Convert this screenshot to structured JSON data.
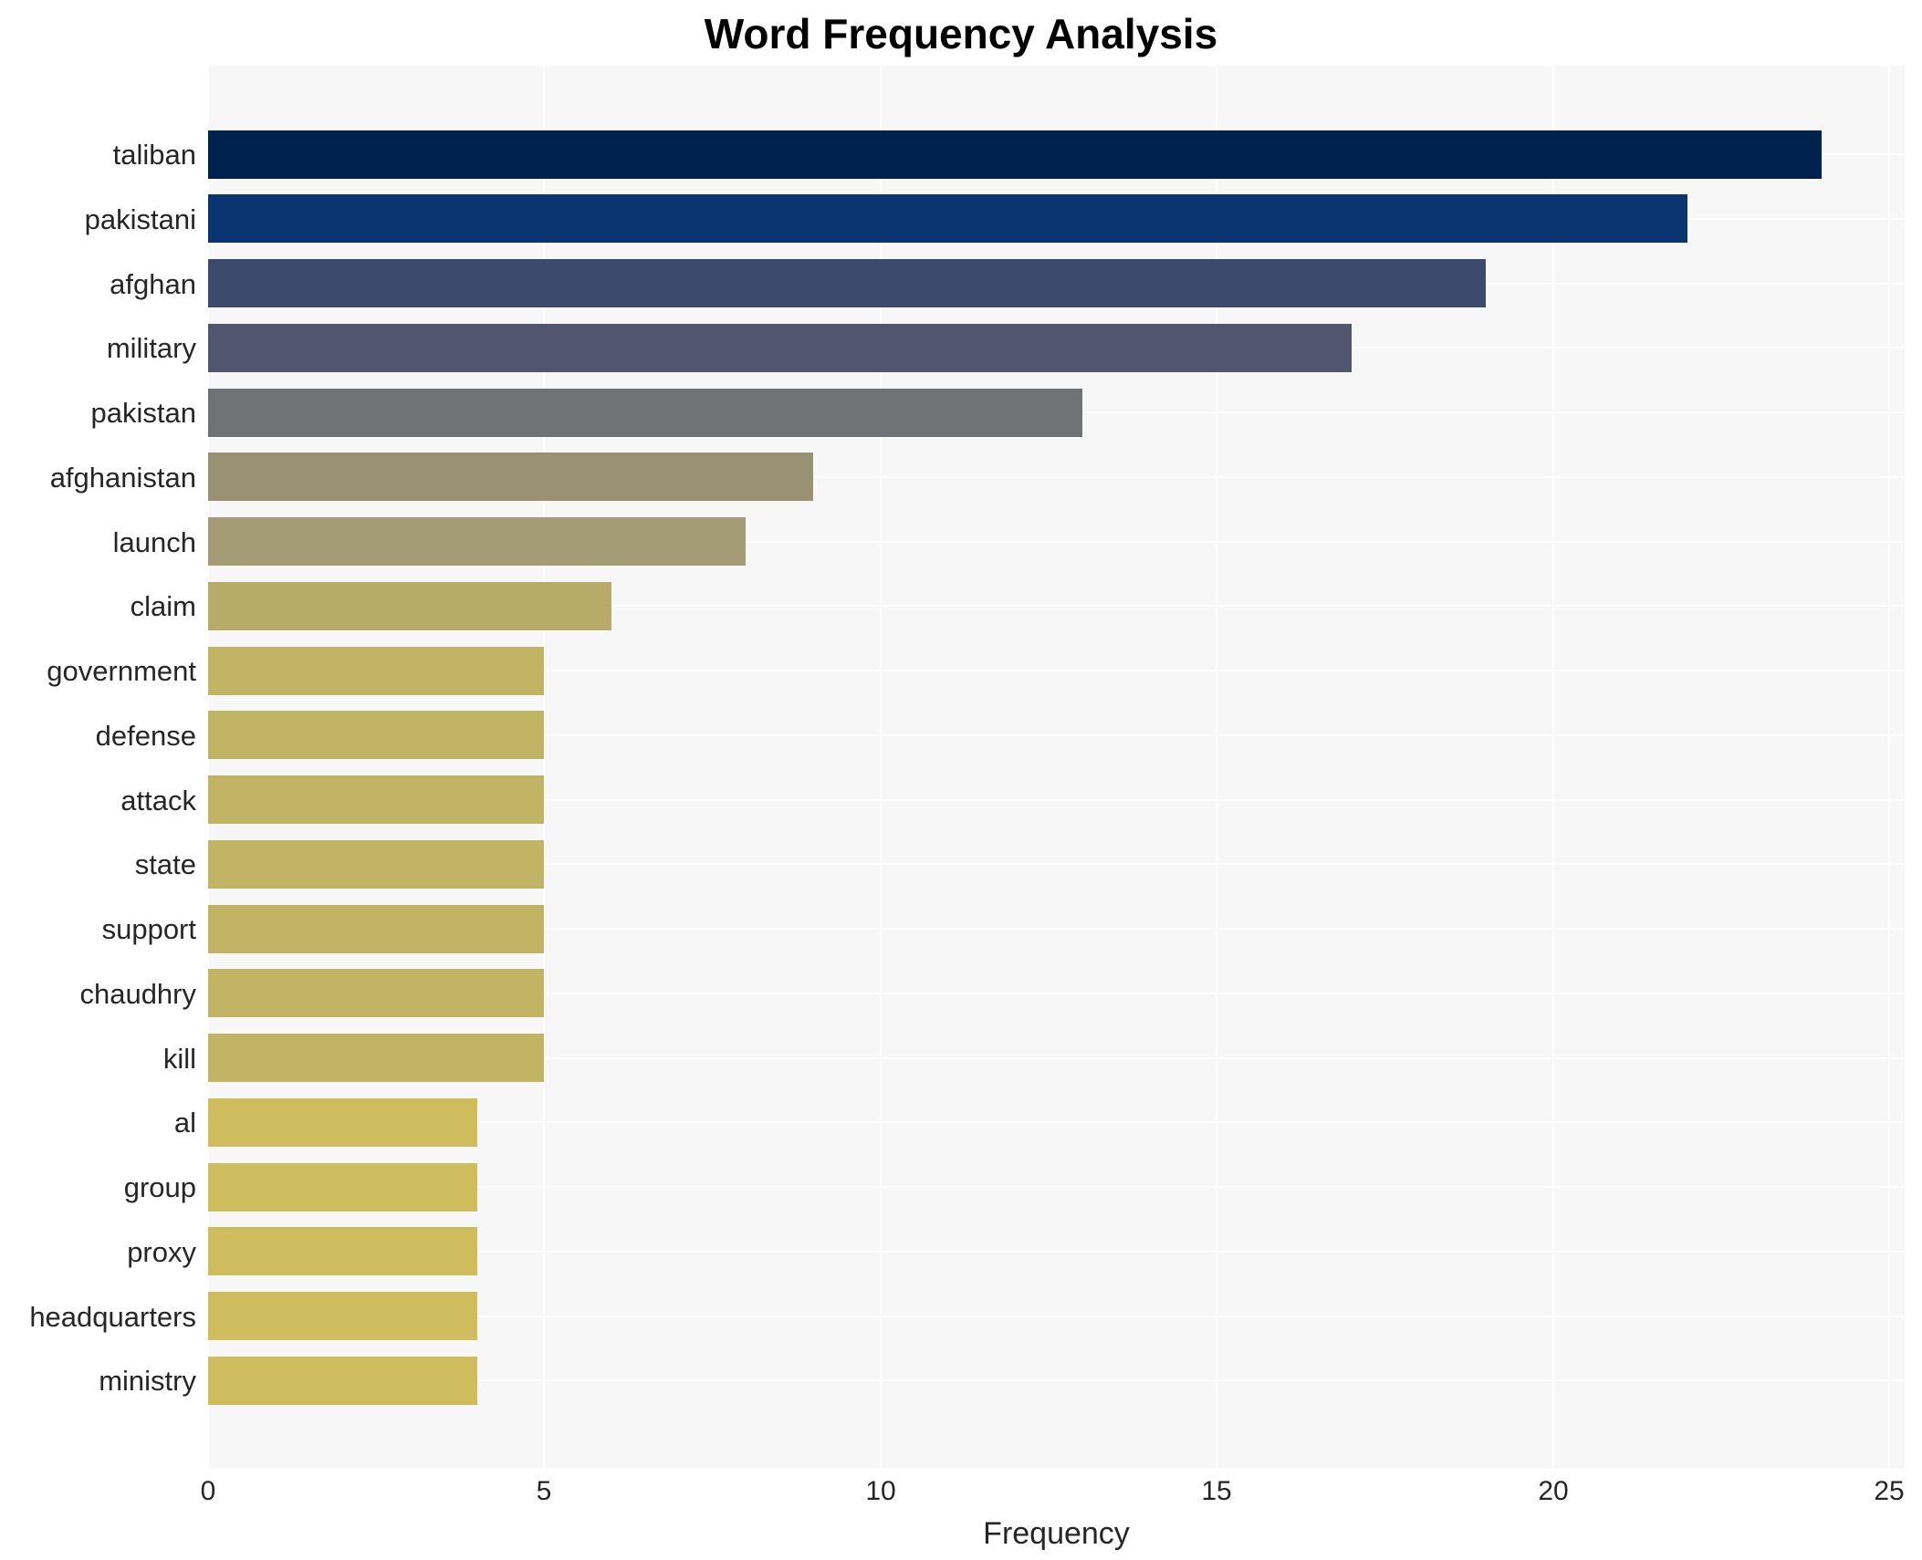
{
  "chart_data": {
    "type": "bar",
    "orientation": "horizontal",
    "title": "Word Frequency Analysis",
    "xlabel": "Frequency",
    "xlim": [
      0,
      25
    ],
    "xticks": [
      0,
      5,
      10,
      15,
      20,
      25
    ],
    "grid": true,
    "legend": "none",
    "plot_bg_color": "#f7f7f7",
    "grid_color": "#ffffff",
    "text_color": "#262626",
    "title_color": "#000000",
    "categories": [
      "taliban",
      "pakistani",
      "afghan",
      "military",
      "pakistan",
      "afghanistan",
      "launch",
      "claim",
      "government",
      "defense",
      "attack",
      "state",
      "support",
      "chaudhry",
      "kill",
      "al",
      "group",
      "proxy",
      "headquarters",
      "ministry"
    ],
    "values": [
      24,
      22,
      19,
      17,
      13,
      9,
      8,
      6,
      5,
      5,
      5,
      5,
      5,
      5,
      5,
      4,
      4,
      4,
      4,
      4
    ],
    "bar_colors": [
      "#00224e",
      "#0a3570",
      "#3c4a6c",
      "#4f566d",
      "#717275",
      "#989173",
      "#a49c74",
      "#b6ab69",
      "#c2b465",
      "#c2b465",
      "#c2b465",
      "#c2b465",
      "#c2b465",
      "#c2b465",
      "#c2b465",
      "#cebc5d",
      "#cebc5d",
      "#cebc5d",
      "#cebc5d",
      "#cebc5d"
    ]
  }
}
